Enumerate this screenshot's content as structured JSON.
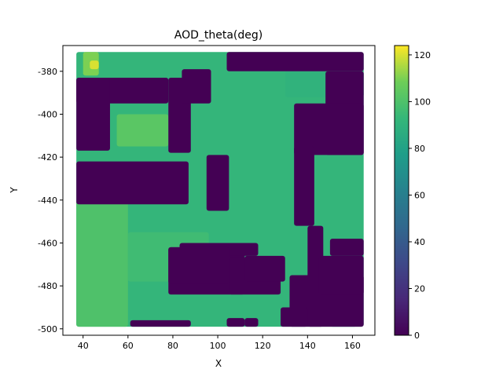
{
  "chart_data": {
    "type": "heatmap",
    "title": "AOD_theta(deg)",
    "xlabel": "X",
    "ylabel": "Y",
    "xlim": [
      31,
      170
    ],
    "ylim": [
      -503,
      -368
    ],
    "x_ticks": [
      "40",
      "60",
      "80",
      "100",
      "120",
      "140",
      "160"
    ],
    "y_ticks": [
      "-380",
      "-400",
      "-420",
      "-440",
      "-460",
      "-480",
      "-500"
    ],
    "colorbar": {
      "range": [
        0,
        124
      ],
      "ticks": [
        "0",
        "20",
        "40",
        "60",
        "80",
        "100",
        "120"
      ],
      "colormap": "viridis"
    },
    "grid": false,
    "regions": [
      {
        "x": [
          37,
          165
        ],
        "y": [
          -499,
          -371
        ],
        "value": 92
      },
      {
        "x": [
          37,
          60
        ],
        "y": [
          -499,
          -440
        ],
        "value": 100
      },
      {
        "x": [
          55,
          78
        ],
        "y": [
          -415,
          -400
        ],
        "value": 103
      },
      {
        "x": [
          40,
          47
        ],
        "y": [
          -382,
          -371
        ],
        "value": 110
      },
      {
        "x": [
          43,
          47
        ],
        "y": [
          -379,
          -375
        ],
        "value": 120
      },
      {
        "x": [
          60,
          96
        ],
        "y": [
          -478,
          -455
        ],
        "value": 96
      },
      {
        "x": [
          130,
          165
        ],
        "y": [
          -392,
          -380
        ],
        "value": 90
      },
      {
        "x": [
          150,
          162
        ],
        "y": [
          -499,
          -485
        ],
        "value": 86
      },
      {
        "x": [
          37,
          78
        ],
        "y": [
          -395,
          -383
        ],
        "value": 0
      },
      {
        "x": [
          37,
          52
        ],
        "y": [
          -417,
          -383
        ],
        "value": 0
      },
      {
        "x": [
          78,
          88
        ],
        "y": [
          -418,
          -383
        ],
        "value": 0
      },
      {
        "x": [
          84,
          97
        ],
        "y": [
          -395,
          -379
        ],
        "value": 0
      },
      {
        "x": [
          37,
          87
        ],
        "y": [
          -442,
          -422
        ],
        "value": 0
      },
      {
        "x": [
          95,
          105
        ],
        "y": [
          -445,
          -419
        ],
        "value": 0
      },
      {
        "x": [
          104,
          165
        ],
        "y": [
          -380,
          -371
        ],
        "value": 0
      },
      {
        "x": [
          148,
          165
        ],
        "y": [
          -419,
          -380
        ],
        "value": 0
      },
      {
        "x": [
          134,
          165
        ],
        "y": [
          -419,
          -395
        ],
        "value": 0
      },
      {
        "x": [
          134,
          143
        ],
        "y": [
          -452,
          -415
        ],
        "value": 0
      },
      {
        "x": [
          140,
          147
        ],
        "y": [
          -499,
          -452
        ],
        "value": 0
      },
      {
        "x": [
          132,
          165
        ],
        "y": [
          -499,
          -475
        ],
        "value": 0
      },
      {
        "x": [
          145,
          165
        ],
        "y": [
          -484,
          -466
        ],
        "value": 0
      },
      {
        "x": [
          150,
          165
        ],
        "y": [
          -466,
          -458
        ],
        "value": 0
      },
      {
        "x": [
          78,
          112
        ],
        "y": [
          -484,
          -462
        ],
        "value": 0
      },
      {
        "x": [
          83,
          118
        ],
        "y": [
          -466,
          -460
        ],
        "value": 0
      },
      {
        "x": [
          105,
          128
        ],
        "y": [
          -484,
          -467
        ],
        "value": 0
      },
      {
        "x": [
          78,
          105
        ],
        "y": [
          -479,
          -462
        ],
        "value": 0
      },
      {
        "x": [
          112,
          130
        ],
        "y": [
          -478,
          -466
        ],
        "value": 0
      },
      {
        "x": [
          61,
          88
        ],
        "y": [
          -499,
          -496
        ],
        "value": 0
      },
      {
        "x": [
          104,
          112
        ],
        "y": [
          -499,
          -495
        ],
        "value": 0
      },
      {
        "x": [
          112,
          118
        ],
        "y": [
          -499,
          -495
        ],
        "value": 0
      },
      {
        "x": [
          128,
          140
        ],
        "y": [
          -499,
          -490
        ],
        "value": 0
      }
    ]
  }
}
